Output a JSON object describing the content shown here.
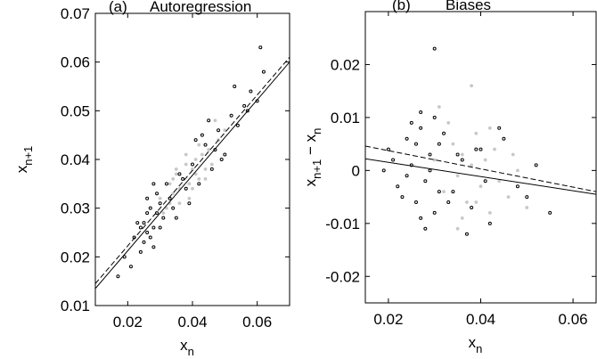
{
  "chart_data": [
    {
      "type": "scatter",
      "panel_label": "(a)",
      "title": "Autoregression",
      "xlabel": [
        "x",
        "n"
      ],
      "ylabel": [
        "x",
        "n+1"
      ],
      "xlim": [
        0.01,
        0.07
      ],
      "ylim": [
        0.01,
        0.07
      ],
      "xticks": [
        0.02,
        0.04,
        0.06
      ],
      "yticks": [
        0.01,
        0.02,
        0.03,
        0.04,
        0.05,
        0.06,
        0.07
      ],
      "series": [
        {
          "color": "#c8c8c8",
          "x": [
            0.03,
            0.032,
            0.033,
            0.034,
            0.035,
            0.036,
            0.037,
            0.038,
            0.039,
            0.04,
            0.041,
            0.042,
            0.043,
            0.044,
            0.045,
            0.046,
            0.048,
            0.05,
            0.031,
            0.034,
            0.036,
            0.038,
            0.04,
            0.042,
            0.035,
            0.039,
            0.044,
            0.047,
            0.033,
            0.041
          ],
          "values": [
            0.032,
            0.03,
            0.035,
            0.033,
            0.037,
            0.034,
            0.036,
            0.039,
            0.035,
            0.038,
            0.04,
            0.036,
            0.041,
            0.038,
            0.042,
            0.039,
            0.044,
            0.046,
            0.029,
            0.036,
            0.031,
            0.041,
            0.034,
            0.043,
            0.038,
            0.032,
            0.036,
            0.048,
            0.031,
            0.037
          ]
        },
        {
          "color": "#000000",
          "x": [
            0.022,
            0.024,
            0.025,
            0.026,
            0.027,
            0.028,
            0.029,
            0.03,
            0.023,
            0.025,
            0.027,
            0.029,
            0.031,
            0.024,
            0.026,
            0.028,
            0.032,
            0.034,
            0.036,
            0.038,
            0.04,
            0.042,
            0.044,
            0.046,
            0.048,
            0.05,
            0.052,
            0.054,
            0.056,
            0.058,
            0.06,
            0.062,
            0.019,
            0.021,
            0.017,
            0.033,
            0.035,
            0.037,
            0.039,
            0.041,
            0.045,
            0.049,
            0.053,
            0.057,
            0.047,
            0.043,
            0.026,
            0.028,
            0.03,
            0.061
          ],
          "values": [
            0.024,
            0.021,
            0.027,
            0.025,
            0.03,
            0.026,
            0.029,
            0.031,
            0.027,
            0.023,
            0.024,
            0.033,
            0.028,
            0.026,
            0.029,
            0.022,
            0.035,
            0.03,
            0.037,
            0.034,
            0.039,
            0.035,
            0.043,
            0.038,
            0.046,
            0.041,
            0.049,
            0.047,
            0.051,
            0.054,
            0.052,
            0.058,
            0.02,
            0.018,
            0.016,
            0.032,
            0.028,
            0.036,
            0.031,
            0.044,
            0.048,
            0.04,
            0.055,
            0.05,
            0.042,
            0.045,
            0.032,
            0.035,
            0.026,
            0.063
          ]
        }
      ],
      "lines": [
        {
          "color": "#000000",
          "dashed": false,
          "x": [
            0.01,
            0.07
          ],
          "values": [
            0.0135,
            0.06
          ]
        },
        {
          "color": "#000000",
          "dashed": true,
          "x": [
            0.01,
            0.07
          ],
          "values": [
            0.0145,
            0.061
          ]
        }
      ]
    },
    {
      "type": "scatter",
      "panel_label": "(b)",
      "title": "Biases",
      "xlabel": [
        "x",
        "n"
      ],
      "ylabel": [
        "x",
        "n+1",
        " − x",
        "n"
      ],
      "xlim": [
        0.015,
        0.065
      ],
      "ylim": [
        -0.025,
        0.03
      ],
      "xticks": [
        0.02,
        0.04,
        0.06
      ],
      "yticks": [
        -0.02,
        -0.01,
        0,
        0.01,
        0.02
      ],
      "series": [
        {
          "color": "#c8c8c8",
          "x": [
            0.03,
            0.032,
            0.034,
            0.035,
            0.036,
            0.037,
            0.038,
            0.039,
            0.04,
            0.041,
            0.042,
            0.043,
            0.044,
            0.045,
            0.046,
            0.048,
            0.033,
            0.036,
            0.039,
            0.042,
            0.038,
            0.035,
            0.047,
            0.05,
            0.031
          ],
          "values": [
            0.002,
            -0.004,
            0.005,
            -0.001,
            0.003,
            -0.006,
            0.001,
            0.007,
            -0.003,
            0.002,
            -0.008,
            0.004,
            -0.002,
            0.006,
            -0.005,
            0.0,
            0.009,
            -0.009,
            -0.006,
            0.008,
            0.016,
            -0.011,
            0.003,
            -0.007,
            0.012
          ]
        },
        {
          "color": "#000000",
          "x": [
            0.02,
            0.022,
            0.024,
            0.025,
            0.026,
            0.027,
            0.028,
            0.029,
            0.03,
            0.031,
            0.023,
            0.025,
            0.027,
            0.029,
            0.032,
            0.034,
            0.036,
            0.038,
            0.04,
            0.042,
            0.045,
            0.048,
            0.052,
            0.021,
            0.024,
            0.026,
            0.028,
            0.03,
            0.033,
            0.035,
            0.019,
            0.037,
            0.041,
            0.044,
            0.05,
            0.055,
            0.027,
            0.031,
            0.039,
            0.03
          ],
          "values": [
            0.004,
            -0.003,
            0.006,
            0.001,
            -0.006,
            0.008,
            -0.002,
            0.003,
            -0.008,
            0.005,
            -0.005,
            0.009,
            -0.009,
            0.0,
            0.007,
            -0.004,
            0.002,
            -0.007,
            0.004,
            -0.01,
            0.006,
            -0.003,
            0.001,
            0.002,
            -0.001,
            0.005,
            -0.011,
            0.01,
            -0.006,
            0.003,
            0.0,
            -0.012,
            -0.002,
            0.008,
            -0.005,
            -0.008,
            0.011,
            -0.004,
            0.004,
            0.023
          ]
        }
      ],
      "lines": [
        {
          "color": "#000000",
          "dashed": false,
          "x": [
            0.015,
            0.065
          ],
          "values": [
            0.0022,
            -0.0045
          ]
        },
        {
          "color": "#000000",
          "dashed": true,
          "x": [
            0.015,
            0.065
          ],
          "values": [
            0.0046,
            -0.004
          ]
        }
      ]
    }
  ]
}
